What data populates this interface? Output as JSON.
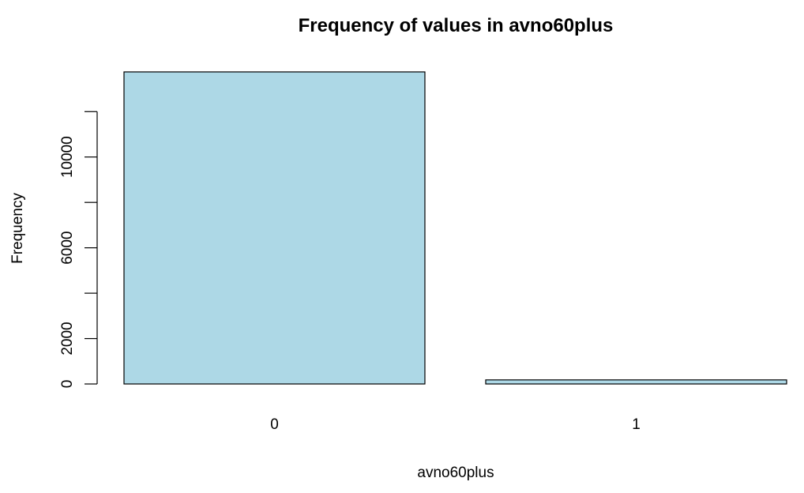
{
  "chart_data": {
    "type": "bar",
    "title": "Frequency of values in avno60plus",
    "xlabel": "avno60plus",
    "ylabel": "Frequency",
    "categories": [
      "0",
      "1"
    ],
    "values": [
      13750,
      180
    ],
    "y_ticks": [
      0,
      2000,
      4000,
      6000,
      8000,
      10000,
      12000
    ],
    "y_tick_labels": [
      "0",
      "2000",
      "",
      "6000",
      "",
      "10000",
      ""
    ],
    "ylim": [
      0,
      13750
    ],
    "bar_color": "#add8e6",
    "grid": false,
    "legend": "none"
  }
}
